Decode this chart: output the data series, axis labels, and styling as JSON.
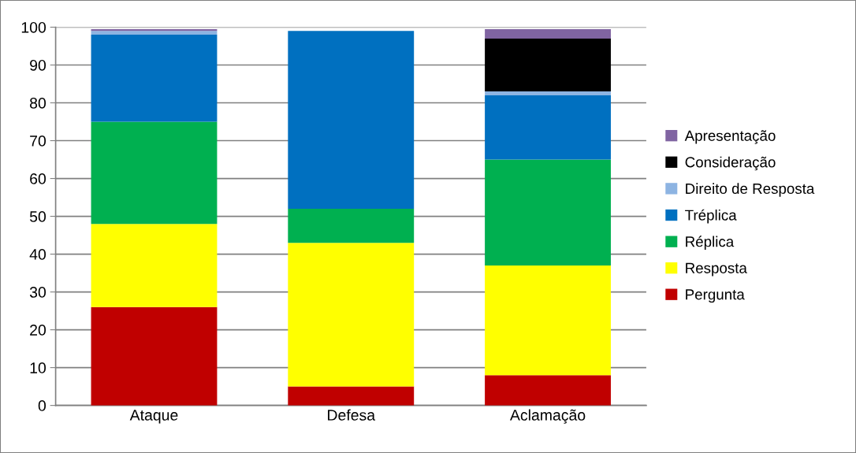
{
  "chart_data": {
    "type": "bar",
    "stacked": true,
    "categories": [
      "Ataque",
      "Defesa",
      "Aclamação"
    ],
    "series": [
      {
        "name": "Pergunta",
        "color": "#c00000",
        "values": [
          26,
          5,
          8
        ]
      },
      {
        "name": "Resposta",
        "color": "#ffff00",
        "values": [
          22,
          38,
          29
        ]
      },
      {
        "name": "Réplica",
        "color": "#00b050",
        "values": [
          27,
          9,
          28
        ]
      },
      {
        "name": "Tréplica",
        "color": "#0070c0",
        "values": [
          23,
          47,
          17
        ]
      },
      {
        "name": "Direito de Resposta",
        "color": "#8db4e2",
        "values": [
          1,
          0,
          1
        ]
      },
      {
        "name": "Consideração",
        "color": "#000000",
        "values": [
          0,
          0,
          14
        ]
      },
      {
        "name": "Apresentação",
        "color": "#8064a2",
        "values": [
          0.5,
          0,
          2.5
        ]
      }
    ],
    "ylim": [
      0,
      100
    ],
    "yticks": [
      0,
      10,
      20,
      30,
      40,
      50,
      60,
      70,
      80,
      90,
      100
    ],
    "grid": "y",
    "legend": "right"
  }
}
